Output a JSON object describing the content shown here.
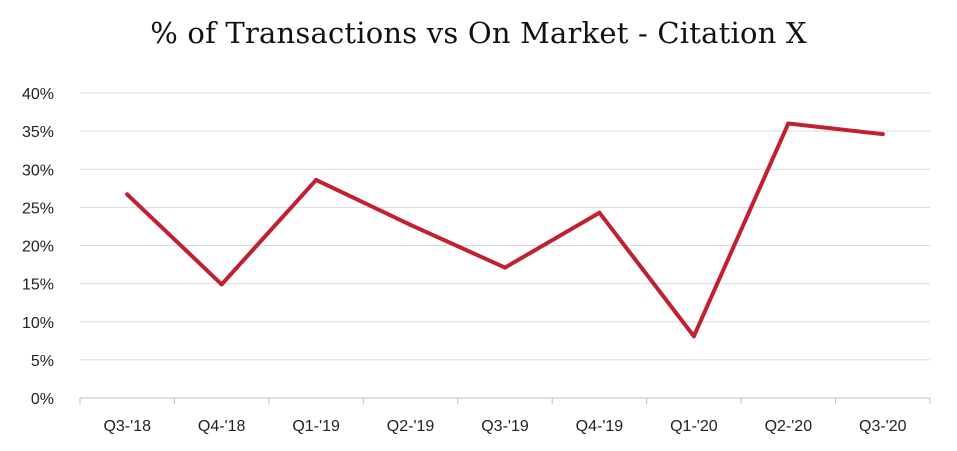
{
  "chart_data": {
    "type": "line",
    "title": "% of Transactions vs On Market - Citation X",
    "xlabel": "",
    "ylabel": "",
    "categories": [
      "Q3-'18",
      "Q4-'18",
      "Q1-'19",
      "Q2-'19",
      "Q3-'19",
      "Q4-'19",
      "Q1-'20",
      "Q2-'20",
      "Q3-'20"
    ],
    "series": [
      {
        "values": [
          26.7,
          14.9,
          28.6,
          22.7,
          17.1,
          24.3,
          8.1,
          36.0,
          34.6
        ],
        "color": "#c0202f"
      }
    ],
    "ylim": [
      0,
      40
    ],
    "yticks": [
      0,
      5,
      10,
      15,
      20,
      25,
      30,
      35,
      40
    ],
    "ytick_labels": [
      "0%",
      "5%",
      "10%",
      "15%",
      "20%",
      "25%",
      "30%",
      "35%",
      "40%"
    ],
    "grid": true,
    "legend": "none"
  }
}
